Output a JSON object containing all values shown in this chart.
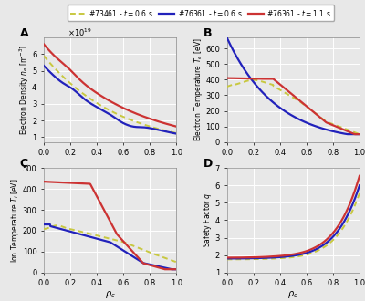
{
  "c1": "#c8c840",
  "c2": "#2222bb",
  "c3": "#cc3333",
  "lw_main": 1.6,
  "lw_dash": 1.4,
  "fig_bg": "#e8e8e8",
  "ax_bg": "#e8e8e8",
  "grid_color": "#ffffff",
  "legend_labels": [
    "#73461 - $t = 0.6$ s",
    "#76361 - $t = 0.6$ s",
    "#76361 - $t = 1.1$ s"
  ],
  "panel_A_ylim": [
    0.7,
    7.0
  ],
  "panel_A_yticks": [
    1,
    2,
    3,
    4,
    5,
    6
  ],
  "panel_B_ylim": [
    0,
    670
  ],
  "panel_B_yticks": [
    0,
    100,
    200,
    300,
    400,
    500,
    600
  ],
  "panel_C_ylim": [
    0,
    500
  ],
  "panel_C_yticks": [
    0,
    100,
    200,
    300,
    400,
    500
  ],
  "panel_D_ylim": [
    1,
    7
  ],
  "panel_D_yticks": [
    1,
    2,
    3,
    4,
    5,
    6,
    7
  ],
  "xlim": [
    0,
    1
  ],
  "xticks": [
    0,
    0.2,
    0.4,
    0.6,
    0.8,
    1.0
  ]
}
